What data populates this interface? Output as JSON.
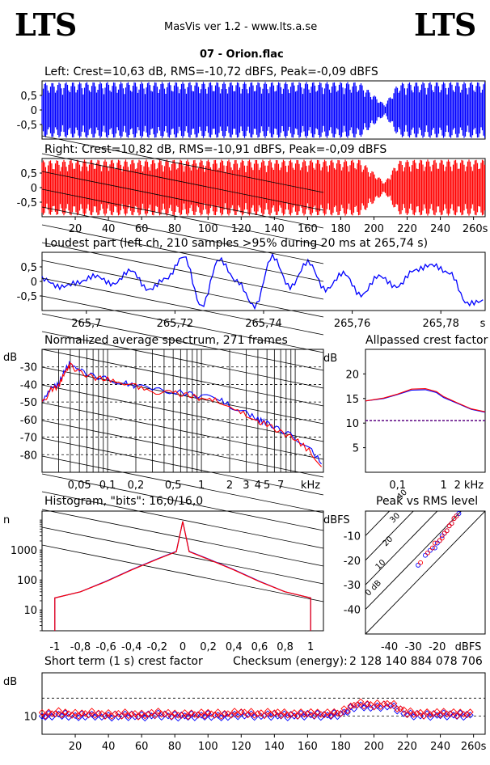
{
  "header": {
    "logo_left": "LTS",
    "logo_right": "LTS",
    "app_title": "MasVis ver 1.2 - www.lts.a.se",
    "file_title": "07 - Orion.flac"
  },
  "colors": {
    "left": "#0000ff",
    "right": "#ff0000",
    "grid": "#000000"
  },
  "chart_data": [
    {
      "id": "waveform-left",
      "type": "area",
      "title": "Left: Crest=10,63 dB, RMS=-10,72 dBFS, Peak=-0,09 dBFS",
      "ylim": [
        -1,
        1
      ],
      "yticks": [
        "0,5",
        "0",
        "-0,5"
      ],
      "x": [
        0,
        20,
        40,
        60,
        80,
        100,
        120,
        140,
        160,
        180,
        190,
        205,
        213,
        225,
        240,
        265
      ],
      "values": [
        0.95,
        0.98,
        0.98,
        0.98,
        0.98,
        0.98,
        0.98,
        0.98,
        0.98,
        0.98,
        0.98,
        0.18,
        0.95,
        0.98,
        0.98,
        0.98
      ]
    },
    {
      "id": "waveform-right",
      "type": "area",
      "title": "Right: Crest=10,82 dB, RMS=-10,91 dBFS, Peak=-0,09 dBFS",
      "ylim": [
        -1,
        1
      ],
      "yticks": [
        "0,5",
        "0",
        "-0,5"
      ],
      "xticks": [
        "20",
        "40",
        "60",
        "80",
        "100",
        "120",
        "140",
        "160",
        "180",
        "200",
        "220",
        "240",
        "260s"
      ],
      "x": [
        0,
        20,
        40,
        60,
        80,
        100,
        120,
        140,
        160,
        180,
        190,
        205,
        213,
        225,
        240,
        265
      ],
      "values": [
        0.95,
        0.98,
        0.98,
        0.98,
        0.98,
        0.98,
        0.98,
        0.98,
        0.98,
        0.98,
        0.98,
        0.18,
        0.95,
        0.98,
        0.98,
        0.98
      ]
    },
    {
      "id": "loudest-part",
      "type": "line",
      "title": "Loudest part (left  ch, 210 samples >95% during 20 ms at 265,74 s)",
      "xlim": [
        265.69,
        265.79
      ],
      "ylim": [
        -1,
        1
      ],
      "yticks": [
        "0,5",
        "0",
        "-0,5"
      ],
      "xticks": [
        "265,7",
        "265,72",
        "265,74",
        "265,76",
        "265,78",
        "s"
      ],
      "x": [
        265.69,
        265.694,
        265.698,
        265.702,
        265.706,
        265.71,
        265.714,
        265.718,
        265.722,
        265.726,
        265.73,
        265.734,
        265.738,
        265.742,
        265.746,
        265.75,
        265.754,
        265.758,
        265.762,
        265.766,
        265.77,
        265.774,
        265.778,
        265.782,
        265.786,
        265.79
      ],
      "values": [
        0.1,
        -0.2,
        -0.05,
        0.2,
        -0.1,
        0.4,
        -0.3,
        0.1,
        0.9,
        -0.9,
        0.8,
        0.0,
        -0.9,
        0.9,
        -0.2,
        0.7,
        -0.3,
        0.3,
        -0.5,
        0.2,
        -0.2,
        0.4,
        0.6,
        0.3,
        -0.8,
        -0.7
      ]
    },
    {
      "id": "spectrum",
      "type": "line",
      "title": "Normalized average spectrum, 271 frames",
      "ylabel": "dB",
      "ylim": [
        -90,
        -20
      ],
      "yticks": [
        "-30",
        "-40",
        "-50",
        "-60",
        "-70",
        "-80"
      ],
      "xticks": [
        "0,05",
        "0,1",
        "0,2",
        "0,5",
        "1",
        "2",
        "3",
        "4",
        "5",
        "7",
        "kHz"
      ],
      "x": [
        0.02,
        0.025,
        0.03,
        0.035,
        0.04,
        0.05,
        0.07,
        0.1,
        0.15,
        0.2,
        0.3,
        0.5,
        0.7,
        1,
        1.5,
        2,
        3,
        4,
        5,
        7,
        10,
        15,
        20
      ],
      "series": [
        {
          "values": [
            -50,
            -42,
            -40,
            -32,
            -28,
            -32,
            -35,
            -37,
            -39,
            -41,
            -43,
            -44,
            -45,
            -47,
            -48,
            -52,
            -56,
            -60,
            -62,
            -66,
            -70,
            -78,
            -86
          ]
        },
        {
          "values": [
            -51,
            -43,
            -41,
            -33,
            -29,
            -33,
            -36,
            -37,
            -40,
            -41,
            -44,
            -45,
            -46,
            -48,
            -49,
            -53,
            -57,
            -61,
            -63,
            -67,
            -71,
            -79,
            -87
          ]
        }
      ]
    },
    {
      "id": "allpassed-crest",
      "type": "line",
      "title": "Allpassed crest factor",
      "ylabel": "dB",
      "ylim": [
        0,
        25
      ],
      "yticks": [
        "20",
        "15",
        "10",
        "5"
      ],
      "xticks": [
        "0,1",
        "1",
        "2",
        "kHz"
      ],
      "reference": 10.5,
      "x": [
        0.02,
        0.05,
        0.1,
        0.2,
        0.4,
        0.7,
        1,
        2,
        4,
        8
      ],
      "series": [
        {
          "values": [
            14.5,
            15.0,
            15.8,
            16.7,
            16.8,
            16.2,
            15.2,
            14.0,
            12.8,
            12.2
          ]
        },
        {
          "values": [
            14.5,
            15.1,
            15.9,
            16.9,
            17.0,
            16.4,
            15.4,
            14.1,
            12.9,
            12.3
          ]
        }
      ]
    },
    {
      "id": "histogram",
      "type": "line",
      "title": "Histogram, \"bits\": 16,0/16,0",
      "ylabel": "n",
      "yticks": [
        "1000",
        "100",
        "10"
      ],
      "xticks": [
        "-1",
        "-0,8",
        "-0,6",
        "-0,4",
        "-0,2",
        "0",
        "0,2",
        "0,4",
        "0,6",
        "0,8",
        "1"
      ],
      "x": [
        -1,
        -0.8,
        -0.6,
        -0.4,
        -0.2,
        -0.05,
        0,
        0.05,
        0.2,
        0.4,
        0.6,
        0.8,
        1
      ],
      "series": [
        {
          "values": [
            25,
            40,
            90,
            220,
            500,
            900,
            9000,
            900,
            500,
            220,
            90,
            40,
            25
          ]
        },
        {
          "values": [
            25,
            40,
            88,
            215,
            490,
            880,
            9000,
            880,
            490,
            215,
            88,
            40,
            25
          ]
        }
      ]
    },
    {
      "id": "peak-vs-rms",
      "type": "scatter",
      "title": "Peak vs RMS level",
      "ylabel": "dBFS",
      "xlabel": "dBFS",
      "yticks": [
        "-10",
        "-20",
        "-30",
        "-40"
      ],
      "xticks": [
        "-40",
        "-30",
        "-20"
      ],
      "diagonals": [
        "40",
        "30",
        "20",
        "10",
        "0 dB"
      ],
      "series": [
        {
          "x": [
            -28,
            -25,
            -23,
            -21,
            -20,
            -19,
            -18,
            -17,
            -16,
            -15,
            -14,
            -13,
            -12,
            -11
          ],
          "y": [
            -22,
            -18,
            -16,
            -15,
            -13,
            -12,
            -10,
            -9,
            -8,
            -6,
            -5,
            -3,
            -2,
            -1
          ]
        },
        {
          "x": [
            -27,
            -24,
            -22,
            -21,
            -19,
            -18,
            -17,
            -16,
            -15,
            -14,
            -13,
            -12
          ],
          "y": [
            -21,
            -17,
            -15,
            -13,
            -12,
            -11,
            -9,
            -8,
            -6,
            -5,
            -3,
            -2
          ]
        }
      ]
    },
    {
      "id": "short-term-crest",
      "type": "scatter",
      "title": "Short term (1 s) crest factor",
      "ylabel": "dB",
      "yticks": [
        "10"
      ],
      "xticks": [
        "20",
        "40",
        "60",
        "80",
        "100",
        "120",
        "140",
        "160",
        "180",
        "200",
        "220",
        "240",
        "260s"
      ],
      "ylim": [
        5,
        22
      ],
      "x": [
        0,
        10,
        20,
        30,
        40,
        50,
        60,
        70,
        80,
        90,
        100,
        110,
        120,
        130,
        140,
        150,
        160,
        170,
        180,
        190,
        200,
        210,
        220,
        230,
        240,
        250,
        260
      ],
      "series": [
        {
          "values": [
            10,
            10.5,
            10,
            10.3,
            10,
            10.2,
            10,
            10.4,
            10,
            10.1,
            10.2,
            10,
            10.5,
            10.2,
            10.3,
            10.1,
            10.4,
            10.2,
            10.5,
            13,
            12.5,
            13,
            10.5,
            10.2,
            10.4,
            10.3,
            10.2
          ]
        },
        {
          "values": [
            10.5,
            11,
            10.5,
            10.8,
            10.4,
            10.6,
            10.3,
            10.9,
            10.4,
            10.5,
            10.7,
            10.5,
            11,
            10.6,
            10.9,
            10.5,
            10.8,
            10.6,
            11,
            13.5,
            13,
            13.4,
            11,
            10.6,
            10.9,
            10.7,
            10.6
          ]
        }
      ],
      "reference_lines": [
        10,
        15
      ]
    }
  ],
  "checksum": {
    "label": "Checksum (energy):",
    "value": "2 128 140 884 078 706"
  }
}
